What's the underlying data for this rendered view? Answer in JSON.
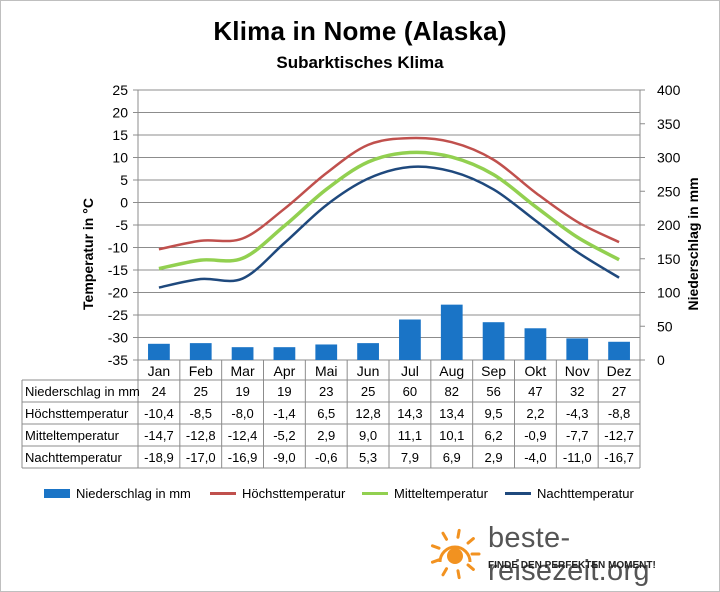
{
  "title": "Klima in Nome (Alaska)",
  "subtitle": "Subarktisches  Klima",
  "chart_data": {
    "type": "line",
    "categories": [
      "Jan",
      "Feb",
      "Mar",
      "Apr",
      "Mai",
      "Jun",
      "Jul",
      "Aug",
      "Sep",
      "Okt",
      "Nov",
      "Dez"
    ],
    "series": [
      {
        "name": "Niederschlag in mm",
        "type": "bar",
        "axis": "right",
        "color": "#1a74c6",
        "values": [
          24,
          25,
          19,
          19,
          23,
          25,
          60,
          82,
          56,
          47,
          32,
          27
        ],
        "labels": [
          "24",
          "25",
          "19",
          "19",
          "23",
          "25",
          "60",
          "82",
          "56",
          "47",
          "32",
          "27"
        ]
      },
      {
        "name": "Höchsttemperatur",
        "type": "line",
        "axis": "left",
        "color": "#c0504d",
        "values": [
          -10.4,
          -8.5,
          -8.0,
          -1.4,
          6.5,
          12.8,
          14.3,
          13.4,
          9.5,
          2.2,
          -4.3,
          -8.8
        ],
        "labels": [
          "-10,4",
          "-8,5",
          "-8,0",
          "-1,4",
          "6,5",
          "12,8",
          "14,3",
          "13,4",
          "9,5",
          "2,2",
          "-4,3",
          "-8,8"
        ]
      },
      {
        "name": "Mitteltemperatur",
        "type": "line",
        "axis": "left",
        "color": "#92d050",
        "values": [
          -14.7,
          -12.8,
          -12.4,
          -5.2,
          2.9,
          9.0,
          11.1,
          10.1,
          6.2,
          -0.9,
          -7.7,
          -12.7
        ],
        "labels": [
          "-14,7",
          "-12,8",
          "-12,4",
          "-5,2",
          "2,9",
          "9,0",
          "11,1",
          "10,1",
          "6,2",
          "-0,9",
          "-7,7",
          "-12,7"
        ]
      },
      {
        "name": "Nachttemperatur",
        "type": "line",
        "axis": "left",
        "color": "#1f497d",
        "values": [
          -18.9,
          -17.0,
          -16.9,
          -9.0,
          -0.6,
          5.3,
          7.9,
          6.9,
          2.9,
          -4.0,
          -11.0,
          -16.7
        ],
        "labels": [
          "-18,9",
          "-17,0",
          "-16,9",
          "-9,0",
          "-0,6",
          "5,3",
          "7,9",
          "6,9",
          "2,9",
          "-4,0",
          "-11,0",
          "-16,7"
        ]
      }
    ],
    "ylabel_left": "Temperatur in °C",
    "ylabel_right": "Niederschlag in mm",
    "ylim_left": [
      -35,
      25
    ],
    "ylim_right": [
      0,
      400
    ],
    "yticks_left": [
      "25",
      "20",
      "15",
      "10",
      "5",
      "0",
      "-5",
      "-10",
      "-15",
      "-20",
      "-25",
      "-30",
      "-35"
    ],
    "yticks_right": [
      "400",
      "350",
      "300",
      "250",
      "200",
      "150",
      "100",
      "50",
      "0"
    ],
    "grid": true,
    "legend_position": "bottom"
  },
  "brand": {
    "name": "beste-reisezeit.org",
    "slogan": "FINDE DEN PERFEKTEN MOMENT!",
    "logo_icon": "sun-icon",
    "logo_color": "#f29220"
  }
}
